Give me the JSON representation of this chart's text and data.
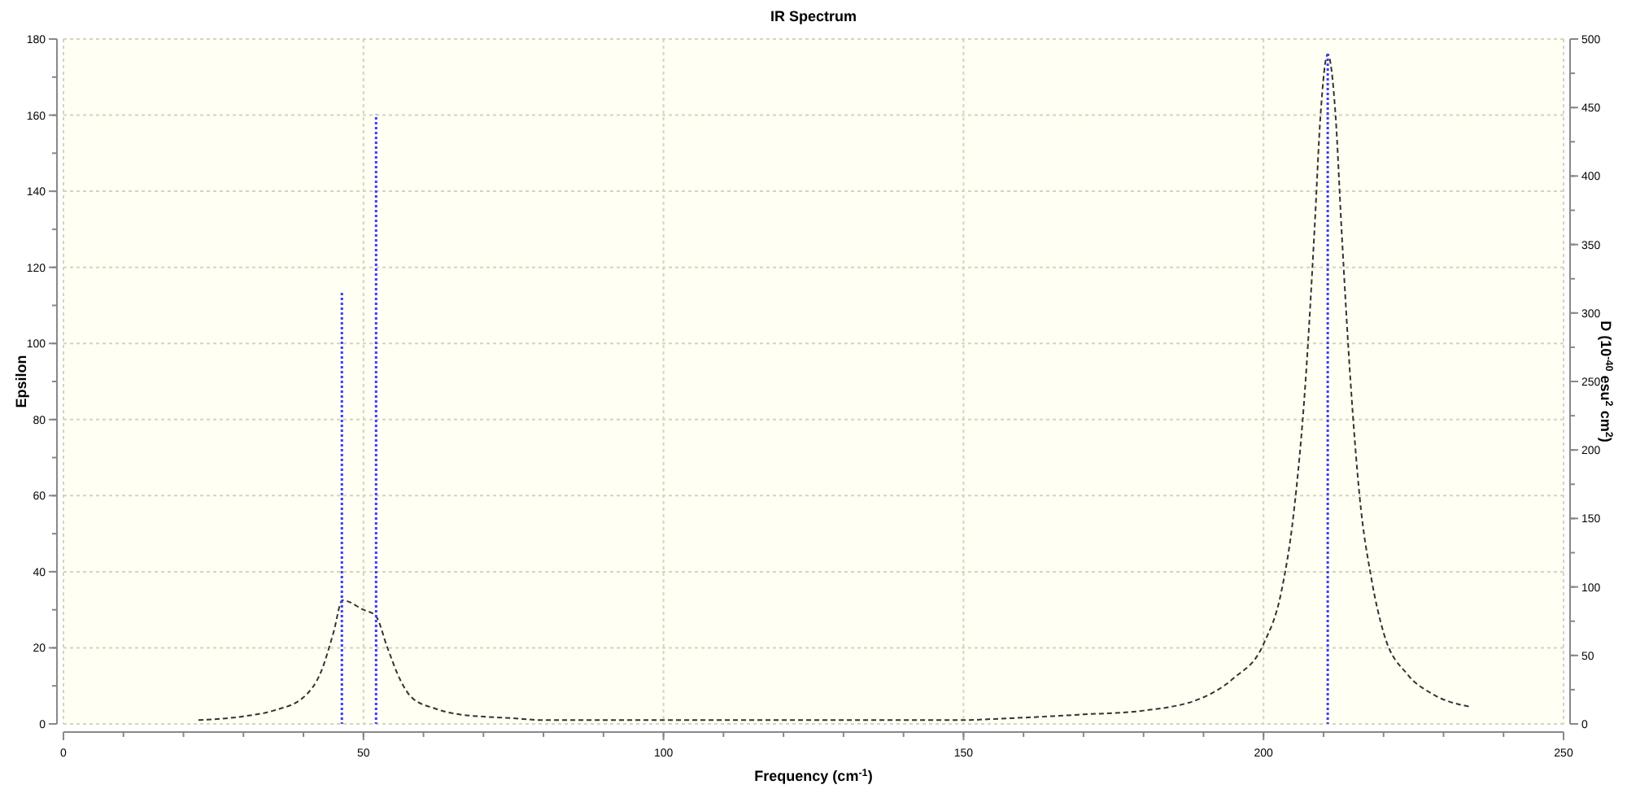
{
  "chart_data": {
    "type": "line",
    "title": "IR Spectrum",
    "xlabel": "Frequency (cm$^{-1}$)",
    "ylabel": "Epsilon",
    "y2label": "D (10$^{-40}$ esu$^{2}$ cm$^{2}$)",
    "xlim": [
      0,
      250
    ],
    "xticks": [
      0,
      50,
      100,
      150,
      200,
      250
    ],
    "ylim": [
      0,
      180
    ],
    "yticks": [
      0,
      20,
      40,
      60,
      80,
      100,
      120,
      140,
      160,
      180
    ],
    "y2lim": [
      0,
      500
    ],
    "y2ticks": [
      0,
      50,
      100,
      150,
      200,
      250,
      300,
      350,
      400,
      450,
      500
    ],
    "grid": true,
    "series": [
      {
        "color": "#333333",
        "line_style": "dashed",
        "x": [
          22.5,
          30,
          35,
          40,
          43,
          45,
          46.5,
          50,
          52,
          54,
          56,
          58,
          62,
          66,
          75,
          80,
          100,
          150,
          155,
          170,
          180,
          190,
          195,
          200,
          203,
          205,
          207,
          208.5,
          209.5,
          210.7,
          212,
          213,
          214.5,
          216,
          218,
          220,
          224,
          228,
          234.5
        ],
        "values": [
          1,
          2,
          3.5,
          7,
          14,
          24,
          32.5,
          30,
          28.5,
          20,
          12,
          7,
          4,
          2.5,
          1.5,
          1,
          1,
          1,
          1.3,
          2.5,
          3.5,
          7,
          12,
          21,
          35,
          55,
          90,
          130,
          160,
          176,
          160,
          130,
          90,
          60,
          38,
          24,
          13,
          8,
          4.5
        ]
      },
      {
        "type": "bar",
        "axis": "y2",
        "color": "#3a3aff",
        "line_style": "dotted",
        "x": [
          46.4,
          52.1,
          210.7
        ],
        "values": [
          315,
          445,
          490
        ]
      }
    ]
  }
}
